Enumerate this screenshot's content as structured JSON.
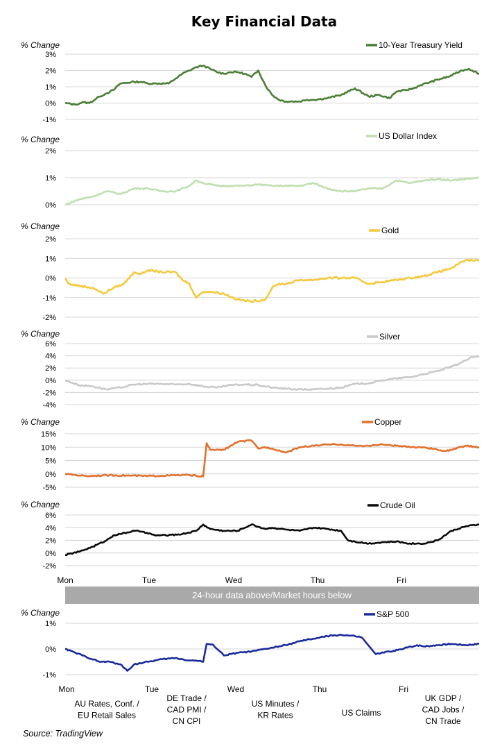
{
  "title": "Key Financial Data",
  "source": "Source: TradingView",
  "banner": "24-hour data above/Market hours below",
  "colors": {
    "treasury": "#4b7f35",
    "dollar": "#bfdfb0",
    "gold": "#f6c93b",
    "silver": "#c9c9c9",
    "copper": "#e2702e",
    "oil": "#0a0a0a",
    "sp500": "#1b2a9c",
    "grid": "#d4d4d4",
    "banner": "#a9a9a9"
  },
  "days_24h": [
    "Mon",
    "Tue",
    "Wed",
    "Thu",
    "Fri"
  ],
  "days_market": [
    "Mon",
    "Tue",
    "Wed",
    "Thu",
    "Fri"
  ],
  "events": [
    {
      "x_day": 1.1,
      "lines": [
        "AU Rates, Conf. /",
        "EU Retail Sales"
      ]
    },
    {
      "x_day": 2.4,
      "lines": [
        "DE Trade /",
        "CAD PMI /",
        "CN CPI"
      ]
    },
    {
      "x_day": 3.28,
      "lines": [
        "US Minutes /",
        "KR Rates"
      ]
    },
    {
      "x_day": 4.5,
      "lines": [
        "US Claims"
      ]
    },
    {
      "x_day": 5.38,
      "lines": [
        "UK GDP /",
        "CAD Jobs /",
        "CN Trade"
      ]
    }
  ],
  "chart_data": [
    {
      "type": "line",
      "name": "10-Year Treasury Yield",
      "legend": "10-Year Treasury Yield",
      "ylabel": "% Change",
      "ylim": [
        -1,
        3
      ],
      "yticks": [
        -1,
        0,
        1,
        2,
        3
      ],
      "yticklabels": [
        "-1%",
        "0%",
        "1%",
        "2%",
        "3%"
      ],
      "color_key": "treasury",
      "x": [
        0,
        0.15,
        0.25,
        0.35,
        0.5,
        0.6,
        0.7,
        0.8,
        1.0,
        1.1,
        1.2,
        1.3,
        1.5,
        1.6,
        1.7,
        1.8,
        1.9,
        2.0,
        2.1,
        2.2,
        2.3,
        2.4,
        2.5,
        2.6,
        2.7,
        2.8,
        2.9,
        3.0,
        3.1,
        3.2,
        3.3,
        3.4,
        3.5,
        3.6,
        3.8,
        4.0,
        4.2,
        4.4,
        4.55,
        4.7,
        4.8,
        4.95,
        5.05,
        5.15,
        5.3,
        5.45,
        5.55,
        5.65,
        5.75,
        5.85,
        5.9,
        6.0
      ],
      "y": [
        0.0,
        -0.1,
        0.05,
        0.0,
        0.4,
        0.6,
        0.8,
        1.2,
        1.3,
        1.3,
        1.2,
        1.2,
        1.2,
        1.5,
        1.8,
        2.0,
        2.2,
        2.3,
        2.1,
        1.9,
        1.8,
        1.9,
        1.9,
        1.8,
        1.6,
        2.0,
        1.1,
        0.5,
        0.2,
        0.1,
        0.1,
        0.1,
        0.2,
        0.2,
        0.3,
        0.5,
        0.9,
        0.4,
        0.5,
        0.3,
        0.7,
        0.8,
        0.9,
        1.1,
        1.3,
        1.5,
        1.6,
        1.8,
        2.0,
        2.1,
        2.0,
        1.8
      ]
    },
    {
      "type": "line",
      "name": "US Dollar Index",
      "legend": "US Dollar Index",
      "ylabel": "% Change",
      "ylim": [
        0,
        2
      ],
      "yticks": [
        0,
        1,
        2
      ],
      "yticklabels": [
        "0%",
        "1%",
        "2%"
      ],
      "color_key": "dollar",
      "x": [
        0,
        0.2,
        0.4,
        0.6,
        0.8,
        1.0,
        1.2,
        1.4,
        1.6,
        1.8,
        1.9,
        2.0,
        2.2,
        2.4,
        2.6,
        2.8,
        3.0,
        3.2,
        3.4,
        3.6,
        3.8,
        4.0,
        4.2,
        4.4,
        4.6,
        4.8,
        5.0,
        5.2,
        5.4,
        5.6,
        5.8,
        6.0
      ],
      "y": [
        0.0,
        0.2,
        0.3,
        0.5,
        0.4,
        0.6,
        0.6,
        0.5,
        0.5,
        0.7,
        0.9,
        0.8,
        0.7,
        0.7,
        0.7,
        0.75,
        0.7,
        0.7,
        0.7,
        0.8,
        0.6,
        0.5,
        0.5,
        0.6,
        0.6,
        0.9,
        0.8,
        0.9,
        0.95,
        0.9,
        0.95,
        1.0
      ]
    },
    {
      "type": "line",
      "name": "Gold",
      "legend": "Gold",
      "ylabel": "% Change",
      "ylim": [
        -2,
        2
      ],
      "yticks": [
        -2,
        -1,
        0,
        1,
        2
      ],
      "yticklabels": [
        "-2%",
        "-1%",
        "0%",
        "1%",
        "2%"
      ],
      "color_key": "gold",
      "x": [
        0,
        0.05,
        0.2,
        0.4,
        0.55,
        0.7,
        0.85,
        1.0,
        1.1,
        1.2,
        1.4,
        1.6,
        1.7,
        1.8,
        1.9,
        2.0,
        2.1,
        2.3,
        2.5,
        2.7,
        2.9,
        3.0,
        3.1,
        3.2,
        3.4,
        3.6,
        3.8,
        4.0,
        4.2,
        4.4,
        4.6,
        4.8,
        5.0,
        5.2,
        5.4,
        5.6,
        5.7,
        5.8,
        5.9,
        6.0
      ],
      "y": [
        0.0,
        -0.3,
        -0.4,
        -0.5,
        -0.8,
        -0.5,
        -0.3,
        0.3,
        0.2,
        0.4,
        0.3,
        0.3,
        -0.1,
        -0.3,
        -1.0,
        -0.7,
        -0.7,
        -0.8,
        -1.1,
        -1.2,
        -1.1,
        -0.5,
        -0.3,
        -0.3,
        -0.1,
        -0.1,
        0.0,
        0.0,
        0.0,
        -0.3,
        -0.2,
        -0.1,
        0.0,
        0.1,
        0.3,
        0.5,
        0.7,
        0.9,
        0.9,
        0.9
      ]
    },
    {
      "type": "line",
      "name": "Silver",
      "legend": "Silver",
      "ylabel": "% Change",
      "ylim": [
        -4,
        6
      ],
      "yticks": [
        -4,
        -2,
        0,
        2,
        4,
        6
      ],
      "yticklabels": [
        "-4%",
        "-2%",
        "0%",
        "2%",
        "4%",
        "6%"
      ],
      "color_key": "silver",
      "x": [
        0,
        0.2,
        0.4,
        0.6,
        0.8,
        1.0,
        1.2,
        1.4,
        1.6,
        1.8,
        2.0,
        2.2,
        2.4,
        2.6,
        2.8,
        3.0,
        3.2,
        3.4,
        3.6,
        3.8,
        4.0,
        4.2,
        4.4,
        4.6,
        4.8,
        5.0,
        5.2,
        5.4,
        5.6,
        5.8,
        5.9,
        6.0
      ],
      "y": [
        0.0,
        -0.8,
        -1.0,
        -1.5,
        -1.2,
        -0.7,
        -0.6,
        -0.6,
        -0.7,
        -0.6,
        -1.0,
        -1.2,
        -0.8,
        -0.7,
        -0.8,
        -1.2,
        -1.4,
        -1.5,
        -1.5,
        -1.4,
        -1.2,
        -0.6,
        -0.5,
        0.0,
        0.3,
        0.5,
        1.0,
        1.5,
        2.2,
        3.2,
        3.8,
        3.8
      ]
    },
    {
      "type": "line",
      "name": "Copper",
      "legend": "Copper",
      "ylabel": "% Change",
      "ylim": [
        -5,
        15
      ],
      "yticks": [
        -5,
        0,
        5,
        10,
        15
      ],
      "yticklabels": [
        "-5%",
        "0%",
        "5%",
        "10%",
        "15%"
      ],
      "color_key": "copper",
      "x": [
        0,
        0.3,
        0.6,
        0.9,
        1.2,
        1.5,
        1.8,
        2.0,
        2.05,
        2.1,
        2.3,
        2.5,
        2.7,
        2.8,
        2.9,
        3.0,
        3.2,
        3.4,
        3.6,
        3.8,
        4.0,
        4.2,
        4.4,
        4.6,
        4.8,
        5.0,
        5.2,
        5.4,
        5.5,
        5.6,
        5.8,
        6.0
      ],
      "y": [
        0.0,
        -0.8,
        -0.5,
        -0.6,
        -0.8,
        -0.6,
        -0.4,
        -1.0,
        11.5,
        9.0,
        9.0,
        12.0,
        12.5,
        9.5,
        10.0,
        9.5,
        8.0,
        10.0,
        10.5,
        11.0,
        11.0,
        10.5,
        10.5,
        11.0,
        10.5,
        10.0,
        10.0,
        9.0,
        8.5,
        9.0,
        10.5,
        10.0
      ]
    },
    {
      "type": "line",
      "name": "Crude Oil",
      "legend": "Crude Oil",
      "ylabel": "% Change",
      "ylim": [
        -2,
        6
      ],
      "yticks": [
        -2,
        0,
        2,
        4,
        6
      ],
      "yticklabels": [
        "-2%",
        "0%",
        "2%",
        "4%",
        "6%"
      ],
      "color_key": "oil",
      "x": [
        0,
        0.2,
        0.4,
        0.6,
        0.7,
        0.8,
        1.0,
        1.1,
        1.3,
        1.5,
        1.7,
        1.9,
        2.0,
        2.1,
        2.3,
        2.5,
        2.7,
        2.9,
        3.0,
        3.2,
        3.4,
        3.6,
        3.8,
        4.0,
        4.1,
        4.2,
        4.4,
        4.6,
        4.8,
        5.0,
        5.2,
        5.4,
        5.6,
        5.8,
        6.0
      ],
      "y": [
        -0.3,
        0.2,
        1.0,
        2.0,
        2.8,
        3.0,
        3.5,
        3.4,
        2.8,
        2.8,
        3.0,
        3.5,
        4.5,
        3.8,
        3.5,
        3.5,
        4.5,
        3.8,
        4.0,
        3.7,
        3.5,
        4.0,
        3.8,
        3.5,
        2.0,
        1.8,
        1.5,
        1.7,
        1.8,
        1.5,
        1.5,
        2.0,
        3.5,
        4.2,
        4.5
      ]
    },
    {
      "type": "line",
      "name": "S&P 500",
      "legend": "S&P 500",
      "ylabel": "% Change",
      "ylim": [
        -1,
        1
      ],
      "yticks": [
        -1,
        0,
        1
      ],
      "yticklabels": [
        "-1%",
        "0%",
        "1%"
      ],
      "color_key": "sp500",
      "x": [
        0,
        0.15,
        0.3,
        0.5,
        0.65,
        0.8,
        0.9,
        1.0,
        1.2,
        1.4,
        1.6,
        1.8,
        1.9,
        2.0,
        2.05,
        2.15,
        2.3,
        2.5,
        2.7,
        2.9,
        3.0,
        3.2,
        3.4,
        3.6,
        3.8,
        4.0,
        4.2,
        4.3,
        4.5,
        4.7,
        4.9,
        5.0,
        5.05,
        5.1,
        5.2,
        5.4,
        5.6,
        5.8,
        6.0
      ],
      "y": [
        0.0,
        -0.15,
        -0.3,
        -0.5,
        -0.5,
        -0.6,
        -0.85,
        -0.6,
        -0.5,
        -0.4,
        -0.35,
        -0.45,
        -0.45,
        -0.5,
        0.2,
        0.15,
        -0.25,
        -0.15,
        -0.1,
        0.0,
        0.05,
        0.15,
        0.3,
        0.4,
        0.5,
        0.55,
        0.5,
        0.45,
        -0.2,
        -0.1,
        0.0,
        0.1,
        0.1,
        0.15,
        0.1,
        0.15,
        0.2,
        0.15,
        0.2
      ]
    }
  ]
}
